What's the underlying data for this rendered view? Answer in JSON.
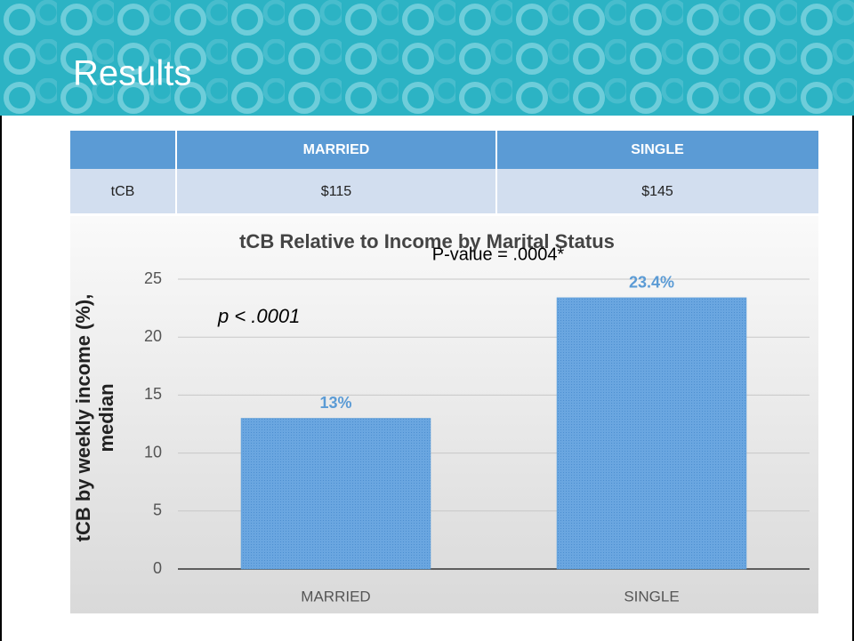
{
  "header": {
    "title": "Results"
  },
  "table": {
    "header": [
      "MARRIED",
      "SINGLE"
    ],
    "rows": [
      [
        "tCB",
        "$115",
        "$145"
      ]
    ]
  },
  "chart_data": {
    "type": "bar",
    "title": "tCB Relative to Income by Marital Status",
    "annotations": [
      "P-value = .0004*",
      "p < .0001"
    ],
    "y_label": "tCB by weekly income (%), median",
    "categories": [
      "MARRIED",
      "SINGLE"
    ],
    "values": [
      13,
      23.4
    ],
    "value_labels": [
      "13%",
      "23.4%"
    ],
    "color": "#5b9bd5",
    "ylim": [
      0,
      25
    ],
    "yticks": [
      0,
      5,
      10,
      15,
      20,
      25
    ],
    "grid": true
  }
}
